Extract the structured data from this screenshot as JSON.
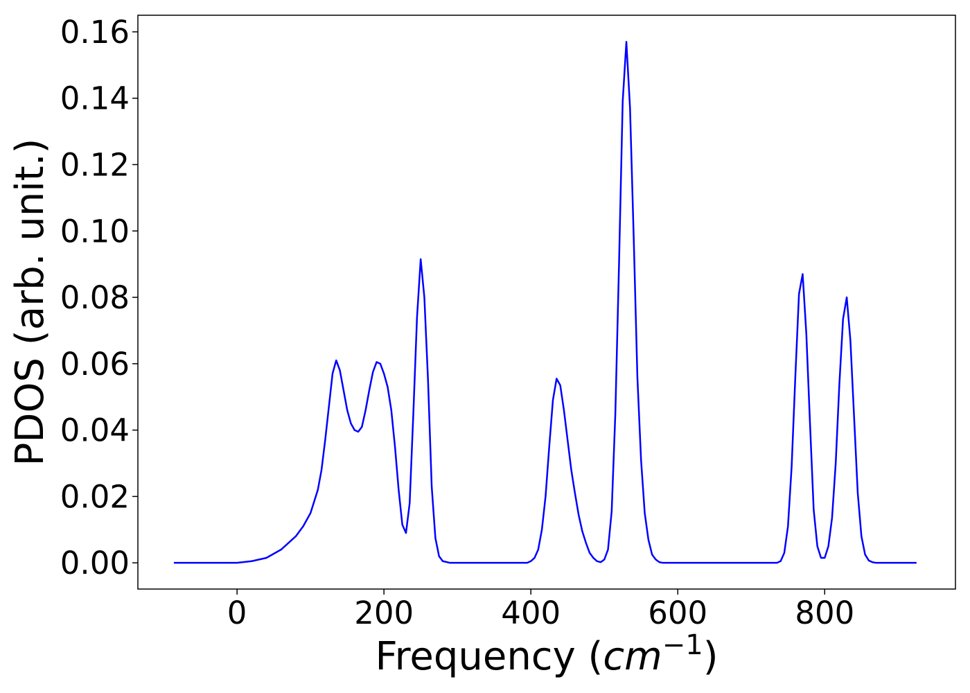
{
  "chart_data": {
    "type": "line",
    "x_label": "Frequency (cm−1)",
    "y_label": "PDOS (arb. unit.)",
    "xlim": [
      -135,
      978
    ],
    "ylim": [
      -0.0079,
      0.165
    ],
    "xticks": [
      0,
      200,
      400,
      600,
      800
    ],
    "yticks": [
      {
        "value": 0,
        "label": "0.00"
      },
      {
        "value": 0.02,
        "label": "0.02"
      },
      {
        "value": 0.04,
        "label": "0.04"
      },
      {
        "value": 0.06,
        "label": "0.06"
      },
      {
        "value": 0.08,
        "label": "0.08"
      },
      {
        "value": 0.1,
        "label": "0.10"
      },
      {
        "value": 0.12,
        "label": "0.12"
      },
      {
        "value": 0.14,
        "label": "0.14"
      },
      {
        "value": 0.16,
        "label": "0.16"
      }
    ],
    "x": [
      -86,
      0,
      20,
      40,
      60,
      80,
      90,
      100,
      110,
      115,
      120,
      125,
      130,
      135,
      140,
      145,
      150,
      155,
      160,
      165,
      170,
      175,
      180,
      185,
      190,
      195,
      200,
      205,
      210,
      215,
      220,
      225,
      230,
      235,
      240,
      245,
      250,
      255,
      260,
      265,
      270,
      275,
      280,
      290,
      395,
      400,
      405,
      410,
      415,
      420,
      425,
      430,
      435,
      440,
      445,
      450,
      455,
      460,
      465,
      470,
      475,
      480,
      485,
      490,
      495,
      500,
      505,
      510,
      515,
      520,
      525,
      530,
      535,
      540,
      545,
      550,
      555,
      560,
      565,
      570,
      575,
      580,
      735,
      740,
      745,
      750,
      755,
      760,
      765,
      770,
      775,
      780,
      785,
      790,
      795,
      800,
      805,
      810,
      815,
      820,
      825,
      830,
      835,
      840,
      845,
      850,
      855,
      860,
      865,
      870,
      925
    ],
    "series": [
      {
        "color": "#0000ff",
        "values": [
          0,
          0,
          0.0005,
          0.0015,
          0.004,
          0.008,
          0.011,
          0.015,
          0.022,
          0.028,
          0.037,
          0.047,
          0.057,
          0.061,
          0.058,
          0.052,
          0.046,
          0.042,
          0.04,
          0.0395,
          0.041,
          0.046,
          0.052,
          0.0575,
          0.0605,
          0.06,
          0.057,
          0.053,
          0.046,
          0.035,
          0.022,
          0.0115,
          0.009,
          0.018,
          0.045,
          0.074,
          0.0915,
          0.08,
          0.055,
          0.023,
          0.0075,
          0.002,
          0.0005,
          0,
          0,
          0.0005,
          0.0015,
          0.004,
          0.01,
          0.02,
          0.035,
          0.049,
          0.0555,
          0.0535,
          0.046,
          0.037,
          0.028,
          0.021,
          0.0145,
          0.0095,
          0.006,
          0.003,
          0.0015,
          0.0005,
          0.0002,
          0.001,
          0.004,
          0.0155,
          0.045,
          0.09,
          0.139,
          0.157,
          0.137,
          0.098,
          0.056,
          0.031,
          0.015,
          0.007,
          0.0025,
          0.001,
          0.0002,
          0,
          0,
          0.0005,
          0.003,
          0.011,
          0.029,
          0.056,
          0.081,
          0.087,
          0.069,
          0.042,
          0.016,
          0.005,
          0.0015,
          0.0015,
          0.005,
          0.0135,
          0.03,
          0.054,
          0.0735,
          0.08,
          0.067,
          0.044,
          0.021,
          0.008,
          0.0025,
          0.0007,
          0.0002,
          0,
          0
        ]
      }
    ]
  }
}
